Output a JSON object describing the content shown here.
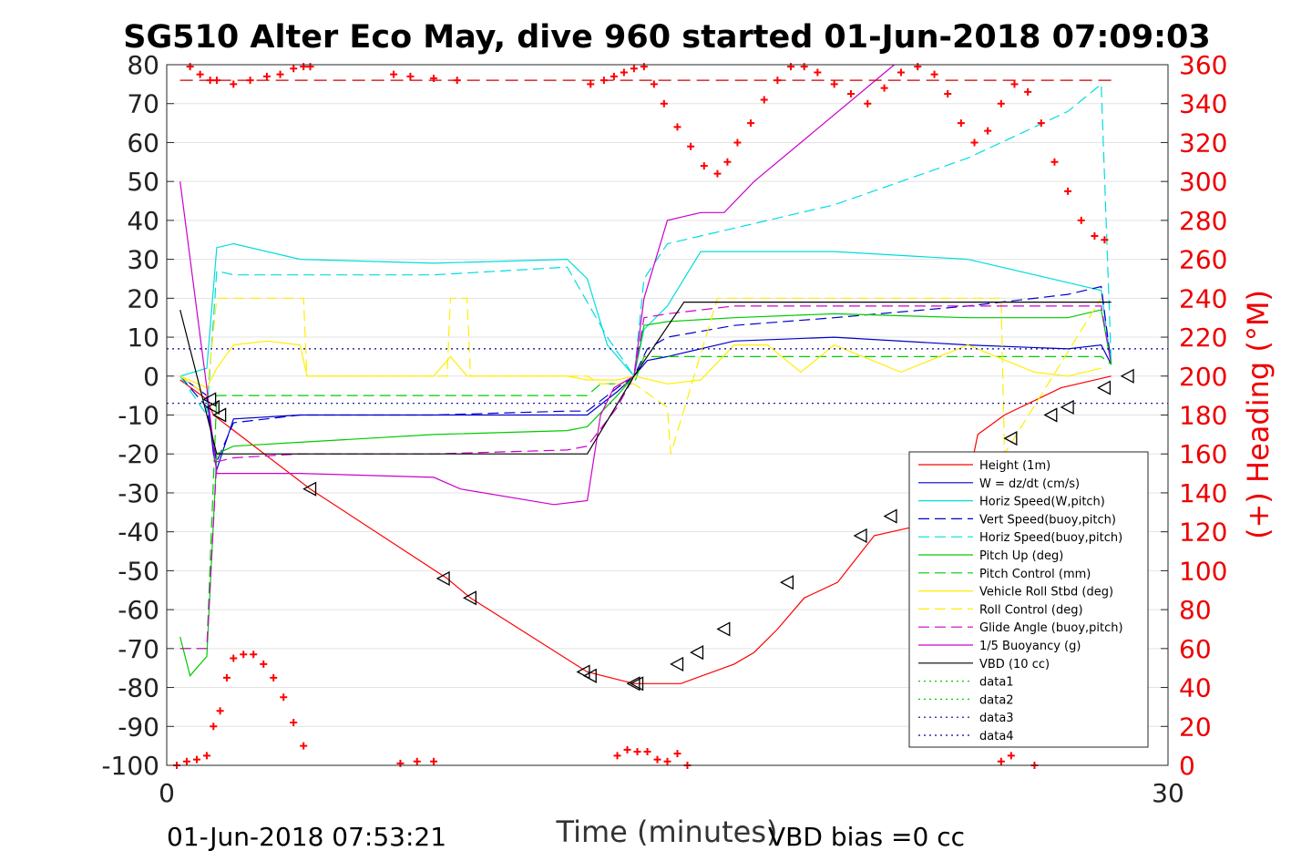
{
  "chart_data": {
    "type": "line",
    "title": "SG510 Alter Eco May, dive 960 started 01-Jun-2018 07:09:03",
    "xlabel": "Time (minutes)",
    "ylabel_right": "(+) Heading (°M)",
    "xlim": [
      0,
      30
    ],
    "ylim": [
      -100,
      80
    ],
    "ylim_right": [
      0,
      360
    ],
    "x_ticks": [
      "0",
      "30"
    ],
    "y_ticks": [
      "80",
      "70",
      "60",
      "50",
      "40",
      "30",
      "20",
      "10",
      "0",
      "-10",
      "-20",
      "-30",
      "-40",
      "-50",
      "-60",
      "-70",
      "-80",
      "-90",
      "-100"
    ],
    "y_ticks_right": [
      "360",
      "340",
      "320",
      "300",
      "280",
      "260",
      "240",
      "220",
      "200",
      "180",
      "160",
      "140",
      "120",
      "100",
      "80",
      "60",
      "40",
      "20",
      "0"
    ],
    "grid": true,
    "legend_placement": "lower-right",
    "footer_left": "01-Jun-2018 07:53:21",
    "footer_right": "VBD bias =0 cc",
    "series": [
      {
        "name": "Height (1m)",
        "color": "#ff0000",
        "dash": "solid",
        "x": [
          0.4,
          1.2,
          1.4,
          4.3,
          8.4,
          9.1,
          12.6,
          14.0,
          15.4,
          17.0,
          17.6,
          18.3,
          19.1,
          20.1,
          21.2,
          23.8,
          24.3,
          25.1,
          26.8,
          28.3
        ],
        "y": [
          -1,
          -6,
          -10,
          -29,
          -52,
          -57,
          -76,
          -79,
          -79,
          -74,
          -71,
          -65,
          -57,
          -53,
          -41,
          -36,
          -15,
          -10,
          -3,
          0
        ]
      },
      {
        "name": "W = dz/dt (cm/s)",
        "color": "#0000cc",
        "dash": "solid",
        "x": [
          0.4,
          1.2,
          1.4,
          1.5,
          2.0,
          4.0,
          8.0,
          12.0,
          12.6,
          13.5,
          14.0,
          14.4,
          15.0,
          17.0,
          20.0,
          24.0,
          27.0,
          28.0,
          28.3
        ],
        "y": [
          0,
          -5,
          -20,
          -24,
          -11,
          -10,
          -10,
          -10,
          -10,
          -4,
          0,
          4,
          5,
          9,
          10,
          8,
          7,
          8,
          3
        ]
      },
      {
        "name": "Horiz Speed(W,pitch)",
        "color": "#00dddd",
        "dash": "solid",
        "x": [
          0.4,
          1.2,
          1.5,
          2.0,
          4.0,
          8.0,
          12.0,
          12.6,
          13.2,
          14.0,
          14.3,
          15.0,
          16.0,
          20.0,
          24.0,
          27.0,
          28.0,
          28.3
        ],
        "y": [
          0,
          2,
          33,
          34,
          30,
          29,
          30,
          25,
          8,
          0,
          12,
          18,
          32,
          32,
          30,
          24,
          22,
          3
        ]
      },
      {
        "name": "Vert Speed(buoy,pitch)",
        "color": "#0000cc",
        "dash": "dashed",
        "x": [
          0.4,
          1.2,
          1.5,
          2.0,
          4.0,
          8.0,
          12.0,
          12.6,
          13.5,
          14.0,
          14.4,
          15.0,
          17.0,
          20.0,
          24.0,
          27.0,
          28.0,
          28.3
        ],
        "y": [
          0,
          -8,
          -22,
          -12,
          -10,
          -10,
          -9,
          -9,
          -3,
          0,
          7,
          10,
          13,
          15,
          18,
          21,
          23,
          3
        ]
      },
      {
        "name": "Horiz Speed(buoy,pitch)",
        "color": "#00dddd",
        "dash": "dashed",
        "x": [
          0.4,
          1.2,
          1.5,
          2.0,
          4.0,
          8.0,
          12.0,
          12.6,
          13.2,
          14.0,
          14.3,
          15.0,
          16.0,
          18.0,
          20.0,
          22.0,
          24.0,
          26.0,
          27.0,
          28.0,
          28.3
        ],
        "y": [
          0,
          -10,
          27,
          26,
          26,
          26,
          28,
          19,
          10,
          0,
          25,
          34,
          36,
          40,
          44,
          50,
          56,
          64,
          68,
          75,
          3
        ]
      },
      {
        "name": "Pitch Up (deg)",
        "color": "#00cc00",
        "dash": "solid",
        "x": [
          0.4,
          0.7,
          1.2,
          1.5,
          2.0,
          4.0,
          8.0,
          12.0,
          12.6,
          13.5,
          14.0,
          14.3,
          15.0,
          17.0,
          20.0,
          24.0,
          27.0,
          28.0,
          28.3
        ],
        "y": [
          -67,
          -77,
          -72,
          -20,
          -18,
          -17,
          -15,
          -14,
          -13,
          -5,
          0,
          13,
          14,
          15,
          16,
          15,
          15,
          17,
          3
        ]
      },
      {
        "name": "Pitch Control (mm)",
        "color": "#00cc00",
        "dash": "dashed",
        "x": [
          0.4,
          1.2,
          1.5,
          2.0,
          4.0,
          8.0,
          12.0,
          12.6,
          13.0,
          14.0,
          14.3,
          15.0,
          20.0,
          24.0,
          28.0,
          28.3
        ],
        "y": [
          -70,
          -70,
          -5,
          -5,
          -5,
          -5,
          -5,
          -5,
          -2,
          -2,
          5,
          5,
          5,
          5,
          5,
          3
        ]
      },
      {
        "name": "Vehicle Roll Stbd (deg)",
        "color": "#ffee00",
        "dash": "solid",
        "x": [
          0.4,
          1.2,
          1.5,
          2.0,
          3.0,
          4.0,
          4.2,
          8.0,
          8.5,
          9.0,
          12.0,
          12.6,
          13.5,
          14.0,
          15.0,
          16.0,
          17.0,
          18.0,
          19.0,
          20.0,
          22.0,
          24.0,
          26.0,
          27.0,
          28.0
        ],
        "y": [
          0,
          -3,
          2,
          8,
          9,
          8,
          0,
          0,
          5,
          0,
          0,
          -1,
          -1,
          0,
          -2,
          -1,
          8,
          8,
          1,
          8,
          1,
          8,
          1,
          0,
          2
        ]
      },
      {
        "name": "Roll Control (deg)",
        "color": "#ffee00",
        "dash": "dashed",
        "x": [
          0.4,
          1.2,
          1.5,
          4.1,
          4.2,
          8.4,
          8.5,
          9.0,
          9.1,
          12.6,
          13.0,
          14.0,
          15.0,
          15.1,
          16.5,
          16.6,
          18.0,
          18.1,
          20.0,
          20.1,
          25.0,
          25.1,
          28.0
        ],
        "y": [
          0,
          -5,
          20,
          20,
          0,
          0,
          20,
          20,
          0,
          0,
          -2,
          -2,
          -8,
          -20,
          20,
          20,
          20,
          20,
          20,
          20,
          20,
          -20,
          20
        ]
      },
      {
        "name": "Glide Angle (buoy,pitch)",
        "color": "#cc00cc",
        "dash": "dashed",
        "x": [
          0.4,
          1.2,
          1.5,
          2.0,
          4.0,
          8.0,
          12.0,
          12.6,
          13.5,
          14.0,
          14.3,
          15.0,
          17.0,
          20.0,
          24.0,
          28.0,
          28.3
        ],
        "y": [
          -70,
          -70,
          -22,
          -21,
          -20,
          -20,
          -19,
          -18,
          -8,
          0,
          15,
          16,
          18,
          18,
          18,
          18,
          3
        ]
      },
      {
        "name": "1/5 Buoyancy (g)",
        "color": "#cc00cc",
        "dash": "solid",
        "x": [
          0.4,
          1.2,
          1.5,
          4.0,
          8.0,
          8.8,
          11.6,
          12.6,
          13.0,
          13.4,
          14.0,
          14.3,
          15.0,
          15.5,
          16.0,
          16.7,
          17.6,
          21.8
        ],
        "y": [
          50,
          -3,
          -25,
          -25,
          -26,
          -29,
          -33,
          -32,
          -10,
          -3,
          0,
          20,
          40,
          41,
          42,
          42,
          50,
          80
        ]
      },
      {
        "name": "VBD (10 cc)",
        "color": "#000000",
        "dash": "solid",
        "x": [
          0.4,
          1.5,
          12.6,
          14.0,
          15.5,
          28.3
        ],
        "y": [
          17,
          -20,
          -20,
          0,
          19,
          19
        ]
      },
      {
        "name": "data1",
        "color": "#00cc00",
        "dash": "dotted",
        "x": [
          0,
          30
        ],
        "y": [
          null,
          null
        ]
      },
      {
        "name": "data2",
        "color": "#00cc00",
        "dash": "dotted",
        "x": [
          0,
          30
        ],
        "y": [
          null,
          null
        ]
      },
      {
        "name": "data3",
        "color": "#000099",
        "dash": "dotted",
        "x": [
          0,
          30
        ],
        "y": [
          7,
          7
        ]
      },
      {
        "name": "data4",
        "color": "#000099",
        "dash": "dotted",
        "x": [
          0,
          30
        ],
        "y": [
          -7,
          -7
        ]
      }
    ],
    "heading_line": {
      "color": "#cc0000",
      "value_deg": 352
    },
    "heading_points": {
      "color": "#ff0000",
      "x": [
        0.7,
        1.0,
        1.3,
        1.5,
        2.0,
        2.5,
        3.0,
        3.4,
        3.8,
        4.1,
        4.3,
        6.8,
        7.3,
        8.0,
        8.7,
        12.7,
        13.1,
        13.4,
        13.7,
        14.0,
        14.3,
        14.6,
        14.9,
        15.3,
        15.7,
        16.1,
        16.5,
        16.8,
        17.1,
        17.5,
        17.9,
        18.3,
        18.7,
        19.1,
        19.5,
        20.0,
        20.5,
        21.0,
        21.5,
        22.0,
        22.5,
        23.0,
        23.4,
        23.8,
        24.2,
        24.6,
        25.0,
        25.4,
        25.8,
        26.2,
        26.6,
        27.0,
        27.4,
        27.8,
        28.1
      ],
      "y": [
        359,
        355,
        352,
        352,
        350,
        352,
        354,
        355,
        358,
        359,
        359,
        355,
        354,
        353,
        352,
        350,
        352,
        354,
        356,
        358,
        359,
        350,
        340,
        328,
        318,
        308,
        304,
        310,
        320,
        330,
        342,
        352,
        359,
        359,
        356,
        350,
        345,
        340,
        348,
        356,
        359,
        355,
        345,
        330,
        320,
        326,
        340,
        350,
        346,
        330,
        310,
        295,
        280,
        272,
        270
      ]
    },
    "heading_points_low": {
      "color": "#ff0000",
      "x": [
        0.3,
        0.6,
        0.9,
        1.2,
        1.4,
        1.6,
        1.8,
        2.0,
        2.3,
        2.6,
        2.9,
        3.2,
        3.5,
        3.8,
        4.1,
        7.0,
        7.5,
        8.0,
        13.5,
        13.8,
        14.1,
        14.4,
        14.7,
        15.0,
        15.3,
        15.6,
        25.0,
        25.3,
        26.0
      ],
      "y": [
        0,
        2,
        3,
        5,
        20,
        28,
        45,
        55,
        57,
        57,
        52,
        45,
        35,
        22,
        10,
        1,
        2,
        2,
        5,
        8,
        7,
        7,
        3,
        2,
        6,
        0,
        2,
        5,
        0
      ]
    },
    "markers": {
      "shape": "triangle-left",
      "x": [
        1.3,
        1.4,
        1.6,
        4.3,
        8.3,
        9.1,
        12.5,
        12.7,
        14.0,
        14.1,
        15.3,
        15.9,
        16.7,
        18.6,
        20.8,
        21.7,
        25.3,
        26.5,
        27.0,
        28.1,
        28.8
      ],
      "y": [
        -6,
        -8,
        -10,
        -29,
        -52,
        -57,
        -76,
        -77,
        -79,
        -79,
        -74,
        -71,
        -65,
        -53,
        -41,
        -36,
        -16,
        -10,
        -8,
        -3,
        0
      ]
    }
  }
}
